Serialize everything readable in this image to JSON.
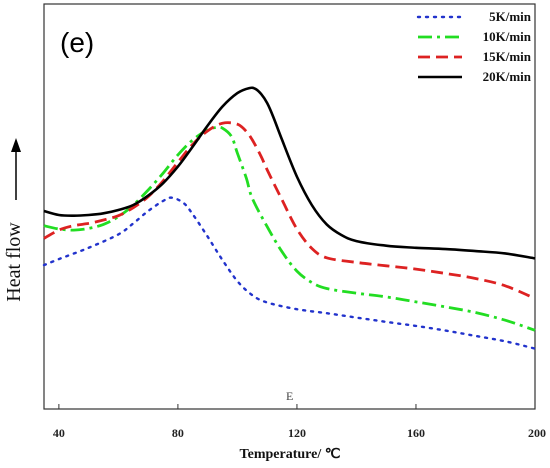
{
  "chart_data": {
    "type": "line",
    "panel_label": "(e)",
    "inner_label": "E",
    "xlabel": "Temperature/ ℃",
    "ylabel": "Heat flow",
    "xlim": [
      35,
      200
    ],
    "ylim": [
      0,
      10
    ],
    "x_ticks": [
      40,
      80,
      120,
      160,
      200
    ],
    "legend_position": "top-right",
    "series": [
      {
        "name": "5K/min",
        "color": "#2233cc",
        "dash": "dot",
        "x": [
          35,
          40,
          50,
          60,
          65,
          70,
          75,
          78,
          82,
          85,
          90,
          95,
          100,
          105,
          110,
          120,
          130,
          140,
          150,
          160,
          170,
          180,
          190,
          200
        ],
        "y": [
          3.2,
          3.38,
          3.72,
          4.12,
          4.45,
          4.82,
          5.12,
          5.22,
          5.05,
          4.72,
          4.05,
          3.35,
          2.72,
          2.3,
          2.08,
          1.88,
          1.76,
          1.63,
          1.5,
          1.38,
          1.24,
          1.08,
          0.92,
          0.7
        ]
      },
      {
        "name": "10K/min",
        "color": "#22dd22",
        "dash": "dashdot",
        "x": [
          35,
          40,
          45,
          50,
          55,
          60,
          65,
          70,
          75,
          80,
          85,
          90,
          93,
          95,
          98,
          100,
          103,
          105,
          110,
          115,
          120,
          125,
          130,
          140,
          150,
          160,
          170,
          180,
          190,
          200
        ],
        "y": [
          4.38,
          4.28,
          4.25,
          4.3,
          4.42,
          4.65,
          5.0,
          5.45,
          5.95,
          6.5,
          6.95,
          7.25,
          7.32,
          7.3,
          7.05,
          6.55,
          5.8,
          5.2,
          4.35,
          3.6,
          3.02,
          2.68,
          2.5,
          2.36,
          2.25,
          2.1,
          1.95,
          1.78,
          1.55,
          1.25
        ]
      },
      {
        "name": "15K/min",
        "color": "#dd2222",
        "dash": "dash",
        "x": [
          35,
          40,
          45,
          50,
          55,
          60,
          65,
          70,
          75,
          80,
          85,
          90,
          95,
          100,
          103,
          105,
          108,
          110,
          115,
          120,
          125,
          130,
          140,
          150,
          160,
          170,
          180,
          190,
          200
        ],
        "y": [
          4.0,
          4.25,
          4.38,
          4.45,
          4.55,
          4.68,
          4.92,
          5.25,
          5.72,
          6.28,
          6.82,
          7.22,
          7.45,
          7.42,
          7.2,
          6.95,
          6.45,
          6.05,
          5.15,
          4.28,
          3.7,
          3.42,
          3.28,
          3.18,
          3.08,
          2.95,
          2.8,
          2.58,
          2.2
        ]
      },
      {
        "name": "20K/min",
        "color": "#000000",
        "dash": "solid",
        "x": [
          35,
          40,
          45,
          50,
          55,
          60,
          65,
          70,
          75,
          80,
          85,
          90,
          95,
          100,
          104,
          106,
          108,
          110,
          112,
          115,
          120,
          125,
          130,
          135,
          140,
          150,
          160,
          170,
          180,
          190,
          200
        ],
        "y": [
          4.82,
          4.7,
          4.68,
          4.7,
          4.75,
          4.85,
          5.0,
          5.28,
          5.65,
          6.15,
          6.75,
          7.38,
          7.95,
          8.35,
          8.5,
          8.48,
          8.32,
          8.05,
          7.65,
          6.95,
          5.85,
          5.0,
          4.42,
          4.1,
          3.92,
          3.78,
          3.72,
          3.68,
          3.62,
          3.55,
          3.4
        ]
      }
    ]
  }
}
